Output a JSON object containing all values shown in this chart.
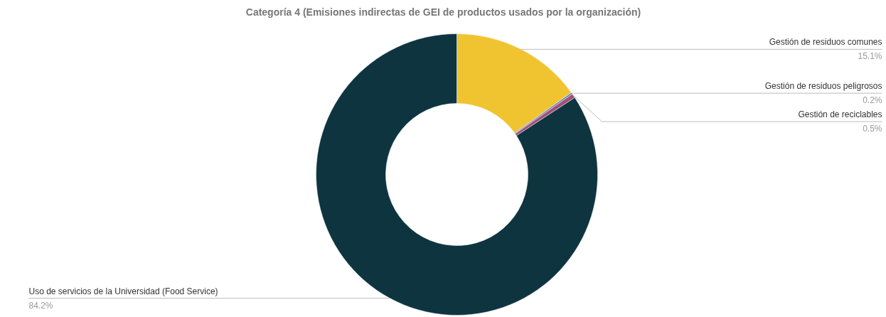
{
  "chart_data": {
    "type": "donut",
    "title": "Categoría 4 (Emisiones indirectas de GEI de productos usados por la organización)",
    "categories": [
      "Gestión de residuos comunes",
      "Gestión de residuos peligrosos",
      "Gestión de reciclables",
      "Uso de servicios de la Universidad (Food Service)"
    ],
    "values": [
      15.1,
      0.2,
      0.5,
      84.2
    ],
    "colors": [
      "#f0c330",
      "#6a7fb5",
      "#a0507a",
      "#0e3440"
    ],
    "value_labels": [
      "15.1%",
      "0.2%",
      "0.5%",
      "84.2%"
    ]
  }
}
